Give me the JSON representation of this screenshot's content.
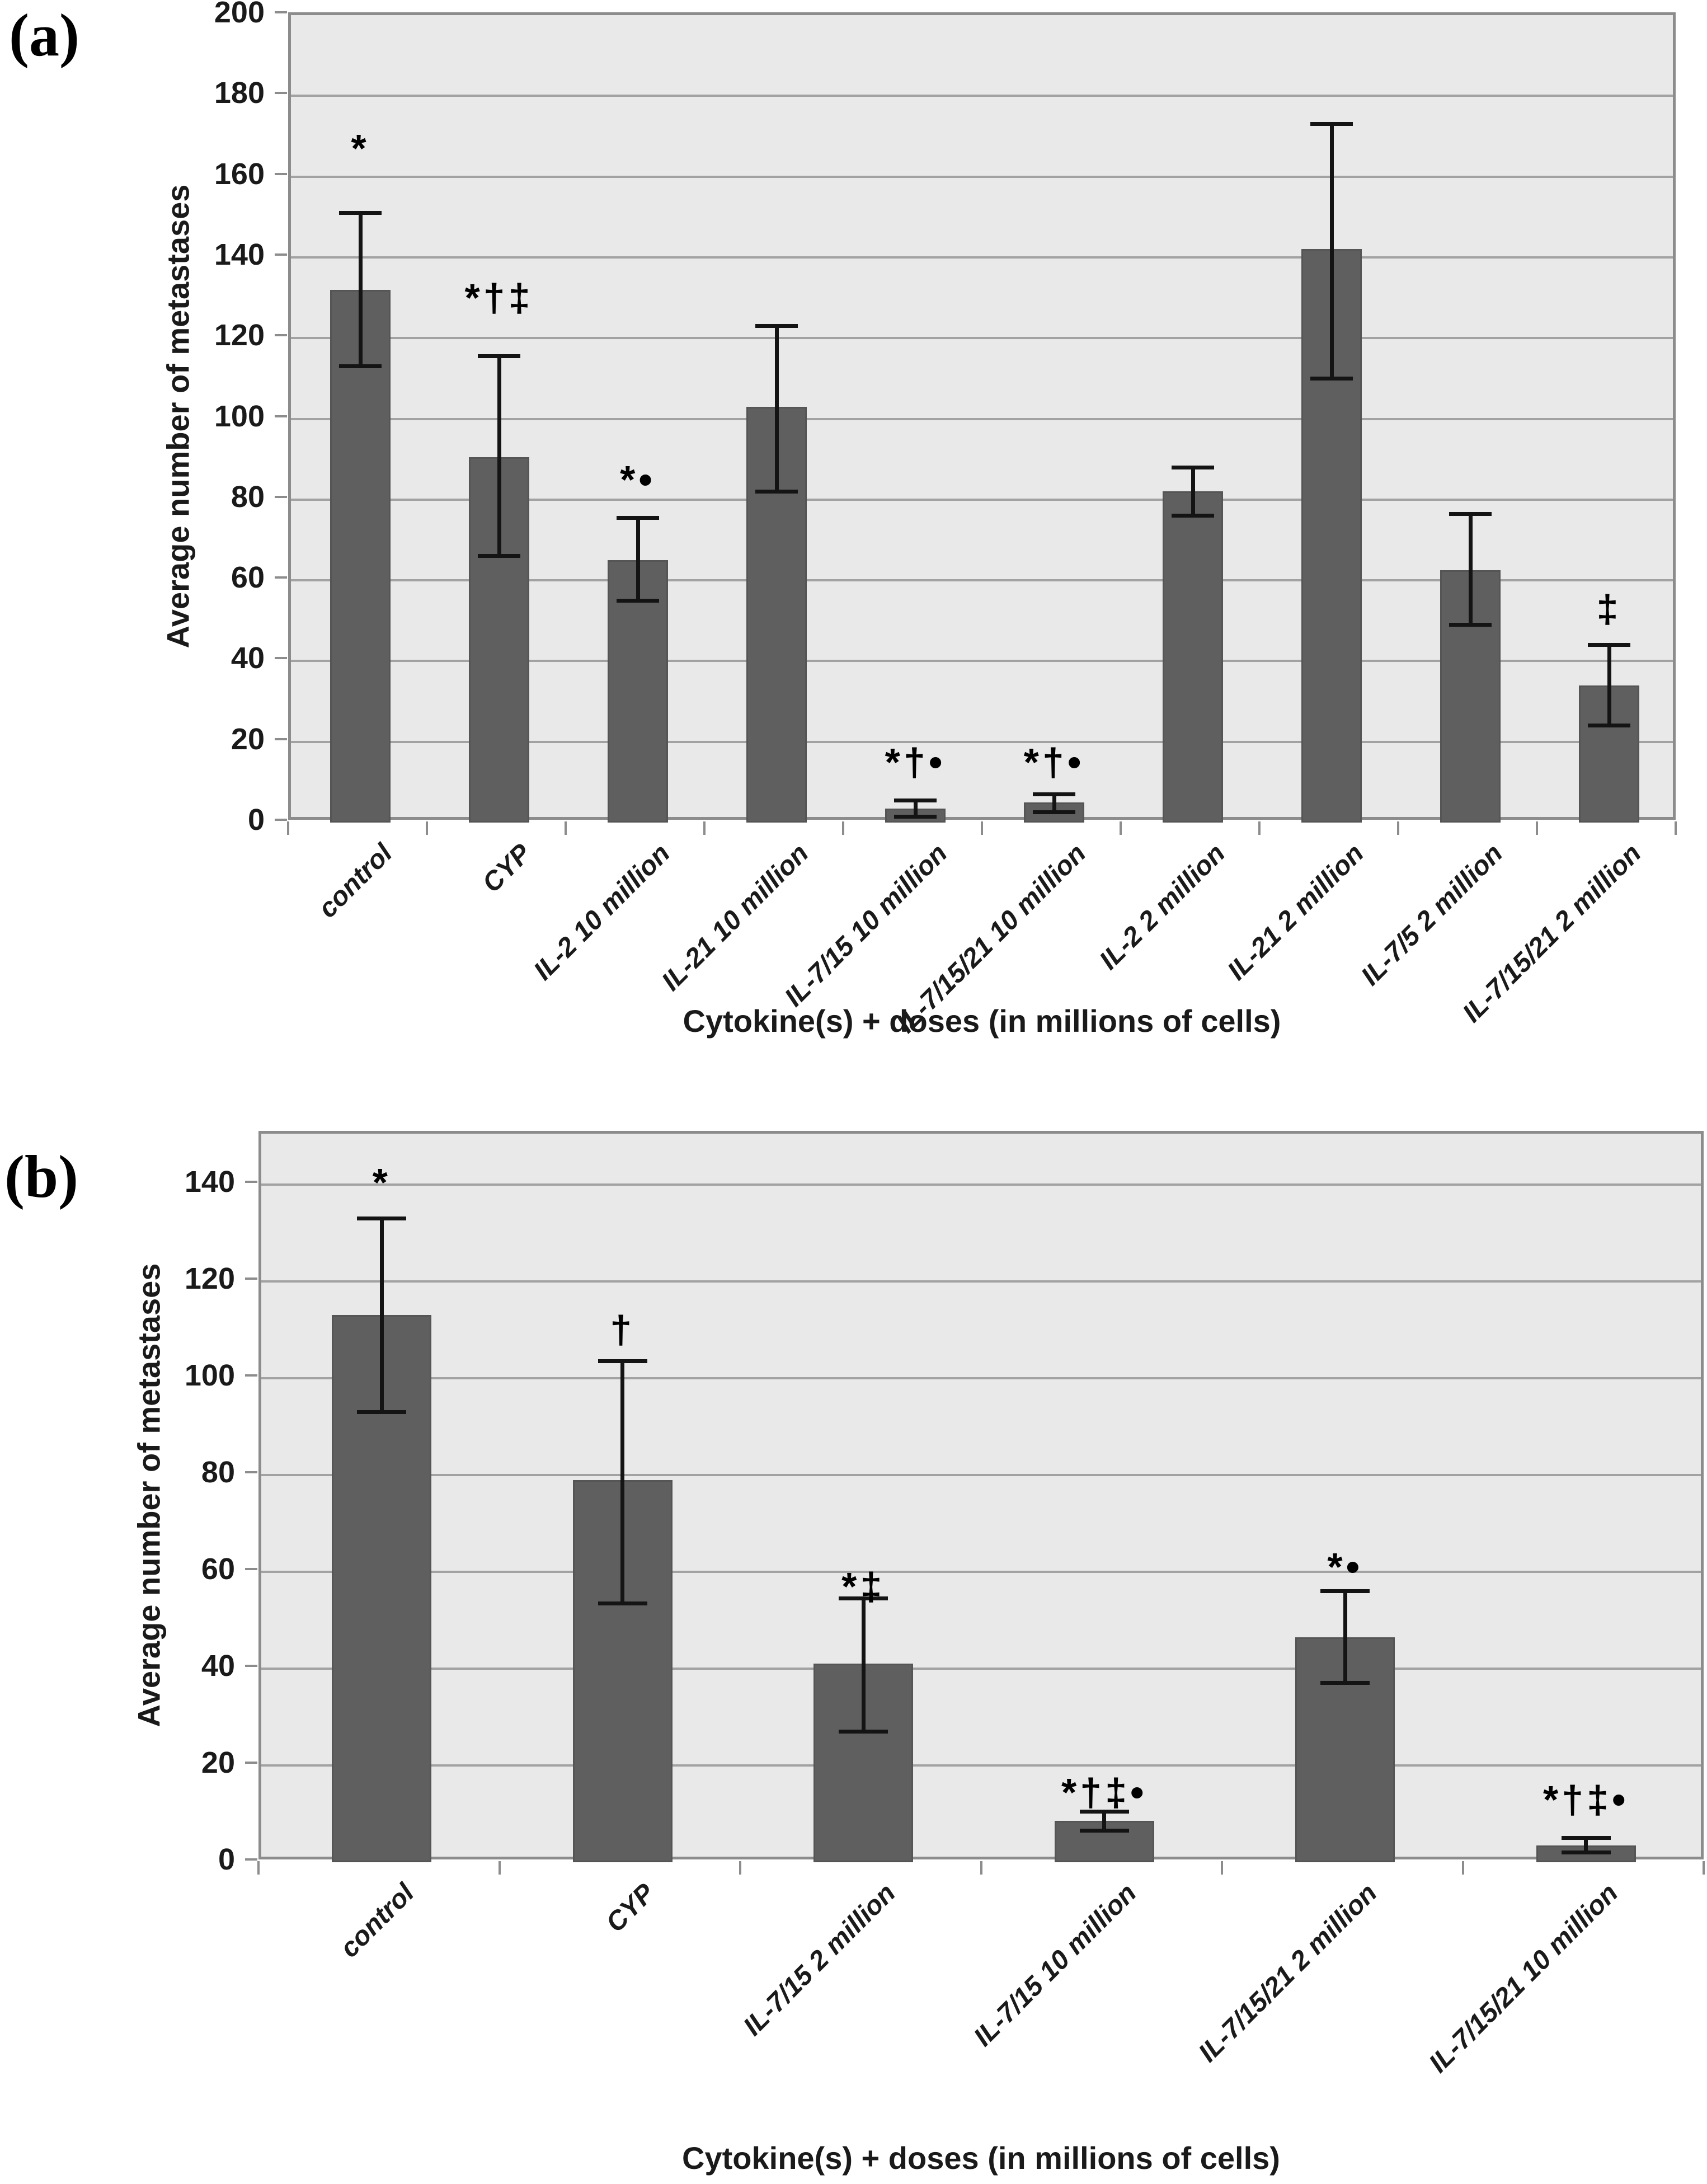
{
  "figure": {
    "background": "#ffffff",
    "colors": {
      "bar_fill": "#5f5f5f",
      "plot_background": "#e9e9e9",
      "gridline": "#a2a2a2",
      "axis_line": "#8c8c8c",
      "error_bar": "#141414",
      "text": "#1a1a1a"
    }
  },
  "chart_data": [
    {
      "type": "bar",
      "panel_label": "(a)",
      "title": "",
      "xlabel": "Cytokine(s) + doses (in millions of cells)",
      "ylabel": "Average number of metastases",
      "ylim": [
        0,
        200
      ],
      "yticks": [
        0,
        20,
        40,
        60,
        80,
        100,
        120,
        140,
        160,
        180,
        200
      ],
      "grid": true,
      "legend_position": "none",
      "categories": [
        "control",
        "CYP",
        "IL-2 10 million",
        "IL-21 10 million",
        "IL-7/15 10 million",
        "IL-7/15/21 10 million",
        "IL-2 2 million",
        "IL-21 2 million",
        "IL-7/5 2 million",
        "IL-7/15/21 2 million"
      ],
      "values": [
        132,
        90.5,
        65,
        103,
        3.5,
        5,
        82,
        142,
        62.5,
        34
      ],
      "error_low": [
        113,
        66,
        55,
        82,
        1.5,
        2.5,
        76,
        110,
        49,
        24
      ],
      "error_high": [
        151,
        115.5,
        75.5,
        123,
        5.5,
        7,
        88,
        173,
        76.5,
        44
      ],
      "annotations": [
        "*",
        "*†‡",
        "*•",
        "",
        "*†•",
        "*†•",
        "",
        "",
        "",
        "‡"
      ],
      "annotation_y": [
        167,
        130,
        85,
        null,
        15,
        15,
        null,
        null,
        null,
        53
      ]
    },
    {
      "type": "bar",
      "panel_label": "(b)",
      "title": "",
      "xlabel": "Cytokine(s) + doses (in millions of cells)",
      "ylabel": "Average number of metastases",
      "ylim": [
        0,
        150.5
      ],
      "yticks": [
        0,
        20,
        40,
        60,
        80,
        100,
        120,
        140
      ],
      "grid": true,
      "legend_position": "none",
      "categories": [
        "control",
        "CYP",
        "IL-7/15 2 million",
        "IL-7/15 10 million",
        "IL-7/15/21 2 million",
        "IL-7/15/21 10 million"
      ],
      "values": [
        113,
        79,
        41,
        8.5,
        46.5,
        3.5
      ],
      "error_low": [
        93,
        53.5,
        27,
        6.5,
        37,
        2
      ],
      "error_high": [
        133,
        103.5,
        54.5,
        10.5,
        56,
        5
      ],
      "annotations": [
        "*",
        "†",
        "*‡",
        "*†‡•",
        "*•",
        "*†‡•"
      ],
      "annotation_y": [
        140.5,
        110,
        57,
        14.5,
        61,
        13
      ]
    }
  ]
}
